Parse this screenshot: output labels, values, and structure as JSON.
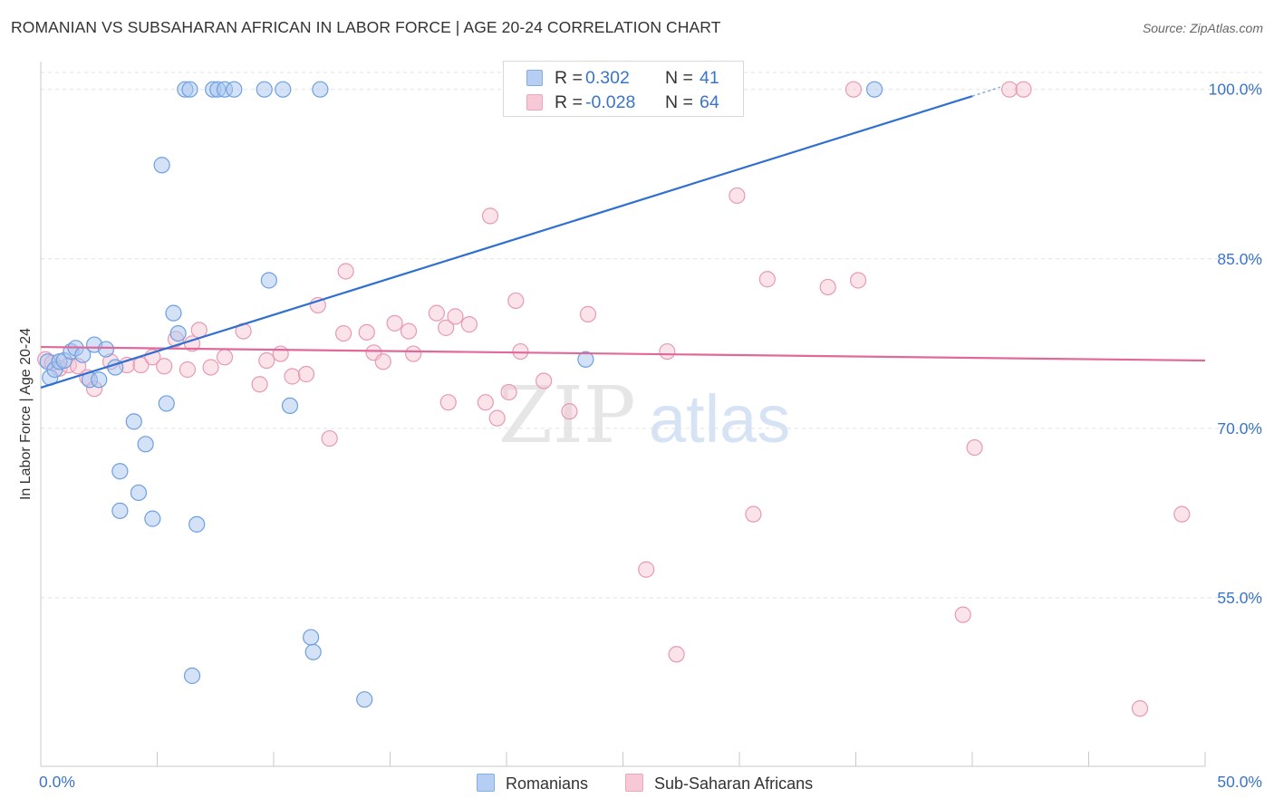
{
  "header": {
    "title": "ROMANIAN VS SUBSAHARAN AFRICAN IN LABOR FORCE | AGE 20-24 CORRELATION CHART",
    "source": "Source: ZipAtlas.com"
  },
  "watermark": {
    "zip": "ZIP",
    "atlas": "atlas"
  },
  "legend_top": [
    {
      "r_label": "R =",
      "r_value": "0.302",
      "n_label": "N =",
      "n_value": "41"
    },
    {
      "r_label": "R =",
      "r_value": "-0.028",
      "n_label": "N =",
      "n_value": "64"
    }
  ],
  "legend_bottom": [
    {
      "label": "Romanians"
    },
    {
      "label": "Sub-Saharan Africans"
    }
  ],
  "colors": {
    "romanians_fill": "#a9c6ef",
    "romanians_stroke": "#6d9fe0",
    "romanians_line": "#2e6fd0",
    "subsaharan_fill": "#f6c0d0",
    "subsaharan_stroke": "#e79ab3",
    "subsaharan_line": "#e0699a",
    "tick_label": "#3a74c9",
    "grid": "#e2e2e2"
  },
  "chart_data": {
    "type": "scatter",
    "title": "ROMANIAN VS SUBSAHARAN AFRICAN IN LABOR FORCE | AGE 20-24 CORRELATION CHART",
    "xlabel": "",
    "ylabel": "In Labor Force | Age 20-24",
    "xlim": [
      0,
      50
    ],
    "ylim": [
      40,
      101.5
    ],
    "x_tick_labels": [
      "0.0%",
      "50.0%"
    ],
    "y_ticks": [
      55,
      70,
      85,
      100
    ],
    "y_tick_labels": [
      "55.0%",
      "70.0%",
      "85.0%",
      "100.0%"
    ],
    "grid": true,
    "legend": "top-center and bottom",
    "series": [
      {
        "name": "Romanians",
        "r": 0.302,
        "n": 41,
        "trend": {
          "x": [
            0,
            40.0
          ],
          "y": [
            73.6,
            99.4
          ],
          "dashed_extension": {
            "x": [
              40.0,
              41.2
            ],
            "y": [
              99.4,
              100.2
            ]
          }
        },
        "points": [
          [
            0.3,
            75.9
          ],
          [
            0.4,
            74.5
          ],
          [
            0.6,
            75.2
          ],
          [
            0.8,
            75.9
          ],
          [
            1.0,
            76.0
          ],
          [
            1.3,
            76.8
          ],
          [
            1.5,
            77.1
          ],
          [
            1.8,
            76.5
          ],
          [
            2.1,
            74.3
          ],
          [
            2.3,
            77.4
          ],
          [
            2.8,
            77.0
          ],
          [
            3.2,
            75.4
          ],
          [
            2.5,
            74.3
          ],
          [
            4.0,
            70.6
          ],
          [
            4.2,
            64.3
          ],
          [
            3.4,
            66.2
          ],
          [
            4.5,
            68.6
          ],
          [
            3.4,
            62.7
          ],
          [
            4.8,
            62.0
          ],
          [
            5.2,
            93.3
          ],
          [
            5.4,
            72.2
          ],
          [
            5.7,
            80.2
          ],
          [
            5.9,
            78.4
          ],
          [
            6.7,
            61.5
          ],
          [
            6.2,
            100.0
          ],
          [
            6.4,
            100.0
          ],
          [
            7.4,
            100.0
          ],
          [
            7.6,
            100.0
          ],
          [
            7.9,
            100.0
          ],
          [
            8.3,
            100.0
          ],
          [
            9.6,
            100.0
          ],
          [
            10.4,
            100.0
          ],
          [
            12.0,
            100.0
          ],
          [
            9.8,
            83.1
          ],
          [
            10.7,
            72.0
          ],
          [
            11.6,
            51.5
          ],
          [
            11.7,
            50.2
          ],
          [
            6.5,
            48.1
          ],
          [
            13.9,
            46.0
          ],
          [
            23.4,
            76.1
          ],
          [
            35.8,
            100.0
          ]
        ]
      },
      {
        "name": "Sub-Saharan Africans",
        "r": -0.028,
        "n": 64,
        "trend": {
          "x": [
            0,
            50
          ],
          "y": [
            77.2,
            76.0
          ]
        },
        "points": [
          [
            0.2,
            76.1
          ],
          [
            0.5,
            75.8
          ],
          [
            0.8,
            75.3
          ],
          [
            1.2,
            75.6
          ],
          [
            1.6,
            75.5
          ],
          [
            2.0,
            74.5
          ],
          [
            2.3,
            73.5
          ],
          [
            3.0,
            75.9
          ],
          [
            3.7,
            75.6
          ],
          [
            4.3,
            75.6
          ],
          [
            4.8,
            76.3
          ],
          [
            5.3,
            75.5
          ],
          [
            5.8,
            77.9
          ],
          [
            6.3,
            75.2
          ],
          [
            6.8,
            78.7
          ],
          [
            6.5,
            77.5
          ],
          [
            7.3,
            75.4
          ],
          [
            7.9,
            76.3
          ],
          [
            8.7,
            78.6
          ],
          [
            9.4,
            73.9
          ],
          [
            9.7,
            76.0
          ],
          [
            10.3,
            76.6
          ],
          [
            10.8,
            74.6
          ],
          [
            11.4,
            74.8
          ],
          [
            11.9,
            80.9
          ],
          [
            12.4,
            69.1
          ],
          [
            13.0,
            78.4
          ],
          [
            13.1,
            83.9
          ],
          [
            14.0,
            78.5
          ],
          [
            14.3,
            76.7
          ],
          [
            14.7,
            75.9
          ],
          [
            15.2,
            79.3
          ],
          [
            15.8,
            78.6
          ],
          [
            16.0,
            76.6
          ],
          [
            17.0,
            80.2
          ],
          [
            17.4,
            78.9
          ],
          [
            17.8,
            79.9
          ],
          [
            17.5,
            72.3
          ],
          [
            18.4,
            79.2
          ],
          [
            19.3,
            88.8
          ],
          [
            19.1,
            72.3
          ],
          [
            19.6,
            70.9
          ],
          [
            20.1,
            73.2
          ],
          [
            20.4,
            81.3
          ],
          [
            20.6,
            76.8
          ],
          [
            21.6,
            74.2
          ],
          [
            22.7,
            71.5
          ],
          [
            23.5,
            80.1
          ],
          [
            26.0,
            57.5
          ],
          [
            26.9,
            76.8
          ],
          [
            27.3,
            50.0
          ],
          [
            29.9,
            90.6
          ],
          [
            30.6,
            62.4
          ],
          [
            31.2,
            83.2
          ],
          [
            33.8,
            82.5
          ],
          [
            34.9,
            100.0
          ],
          [
            35.1,
            83.1
          ],
          [
            39.6,
            53.5
          ],
          [
            40.1,
            68.3
          ],
          [
            41.6,
            100.0
          ],
          [
            42.2,
            100.0
          ],
          [
            47.2,
            45.2
          ],
          [
            49.0,
            62.4
          ],
          [
            28.5,
            100.0
          ]
        ]
      }
    ]
  }
}
